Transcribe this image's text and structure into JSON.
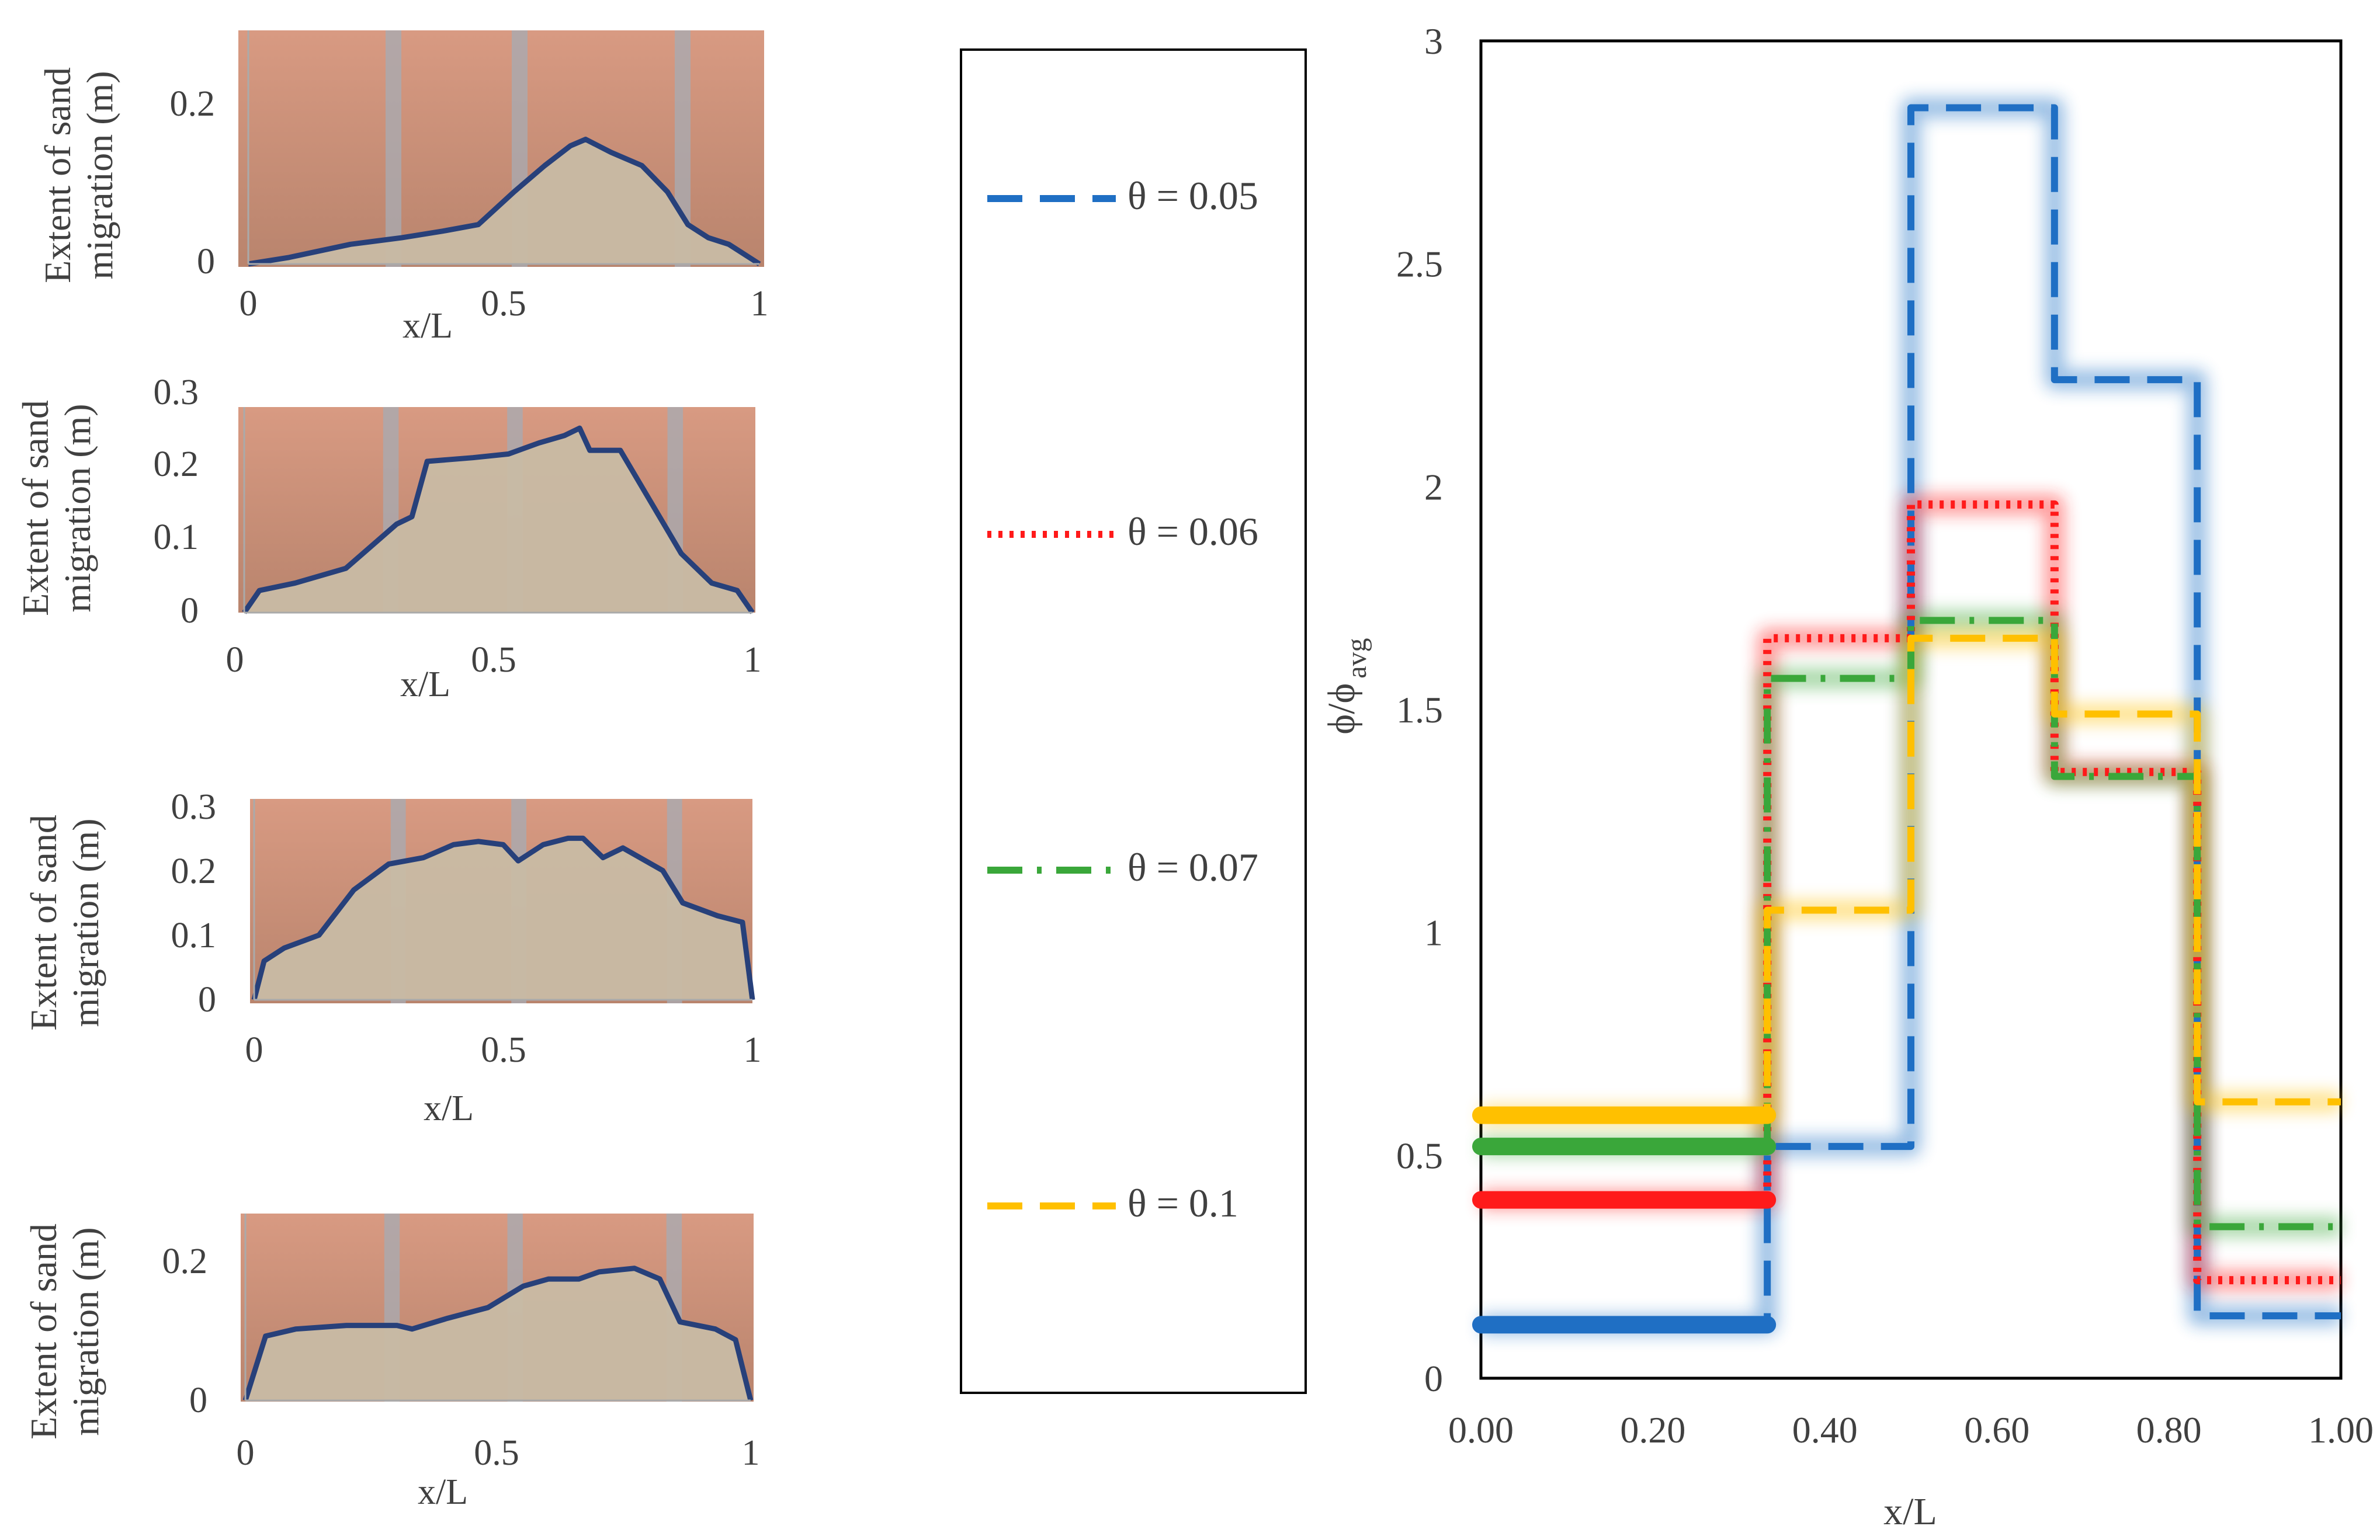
{
  "colors": {
    "blue": "#1f6fc4",
    "red": "#ff1a1a",
    "green": "#3aa73a",
    "yellow": "#ffc000",
    "sand_line": "#27407a",
    "photo_wall": "#c98f77",
    "sand": "#c8bba4",
    "post": "#a9aab0"
  },
  "legend": {
    "entries": [
      {
        "label": "θ = 0.05",
        "color_key": "blue",
        "style": "dashed"
      },
      {
        "label": "θ = 0.06",
        "color_key": "red",
        "style": "dotted"
      },
      {
        "label": "θ = 0.07",
        "color_key": "green",
        "style": "dashdot"
      },
      {
        "label": "θ = 0.1",
        "color_key": "yellow",
        "style": "dashed"
      }
    ]
  },
  "panels": [
    {
      "ylabel": [
        "Extent of sand",
        "migration (m)"
      ],
      "xlabel": "x/L",
      "yticks": [
        "0.2",
        "0"
      ],
      "ytick_values": [
        0.2,
        0
      ],
      "xticks": [
        "0",
        "0.5",
        "1"
      ],
      "ymax": 0.3
    },
    {
      "ylabel": [
        "Extent of sand",
        "migration (m)"
      ],
      "xlabel": "x/L",
      "yticks": [
        "0.3",
        "0.2",
        "0.1",
        "0"
      ],
      "ytick_values": [
        0.3,
        0.2,
        0.1,
        0
      ],
      "xticks": [
        "0",
        "0.5",
        "1"
      ],
      "ymax": 0.3
    },
    {
      "ylabel": [
        "Extent of sand",
        "migration (m)"
      ],
      "xlabel": "x/L",
      "yticks": [
        "0.3",
        "0.2",
        "0.1",
        "0"
      ],
      "ytick_values": [
        0.3,
        0.2,
        0.1,
        0
      ],
      "xticks": [
        "0",
        "0.5",
        "1"
      ],
      "ymax": 0.3
    },
    {
      "ylabel": [
        "Extent of sand",
        "migration (m)"
      ],
      "xlabel": "x/L",
      "yticks": [
        "0.2",
        "0"
      ],
      "ytick_values": [
        0.2,
        0
      ],
      "xticks": [
        "0",
        "0.5",
        "1"
      ],
      "ymax": 0.26
    }
  ],
  "chart_data": [
    {
      "type": "line",
      "chart": "main-step-chart",
      "xlabel": "x/L",
      "ylabel": "ϕ/ϕ",
      "ylabel_sub": "avg",
      "xlim": [
        0,
        1
      ],
      "ylim": [
        0,
        3
      ],
      "xticks": [
        "0.00",
        "0.20",
        "0.40",
        "0.60",
        "0.80",
        "1.00"
      ],
      "xtick_values": [
        0,
        0.2,
        0.4,
        0.6,
        0.8,
        1.0
      ],
      "yticks": [
        "0",
        "0.5",
        "1",
        "1.5",
        "2",
        "2.5",
        "3"
      ],
      "ytick_values": [
        0,
        0.5,
        1,
        1.5,
        2,
        2.5,
        3
      ],
      "bin_edges": [
        0,
        0.333,
        0.5,
        0.667,
        0.833,
        1.0
      ],
      "series": [
        {
          "name": "θ = 0.05",
          "values": [
            0.12,
            0.52,
            2.85,
            2.24,
            0.14
          ]
        },
        {
          "name": "θ = 0.06",
          "values": [
            0.4,
            1.66,
            1.96,
            1.36,
            0.22
          ]
        },
        {
          "name": "θ = 0.07",
          "values": [
            0.52,
            1.57,
            1.7,
            1.35,
            0.34
          ]
        },
        {
          "name": "θ = 0.1",
          "values": [
            0.59,
            1.05,
            1.66,
            1.49,
            0.62
          ]
        }
      ]
    },
    {
      "type": "line",
      "chart": "sand-profile-1",
      "x": [
        0,
        0.08,
        0.2,
        0.3,
        0.38,
        0.45,
        0.52,
        0.58,
        0.63,
        0.66,
        0.71,
        0.77,
        0.82,
        0.86,
        0.9,
        0.94,
        1.0
      ],
      "y": [
        0.0,
        0.01,
        0.03,
        0.04,
        0.05,
        0.06,
        0.11,
        0.15,
        0.18,
        0.19,
        0.17,
        0.15,
        0.11,
        0.06,
        0.04,
        0.03,
        0.0
      ]
    },
    {
      "type": "line",
      "chart": "sand-profile-2",
      "x": [
        0,
        0.03,
        0.1,
        0.2,
        0.3,
        0.33,
        0.36,
        0.45,
        0.52,
        0.58,
        0.63,
        0.66,
        0.68,
        0.74,
        0.8,
        0.86,
        0.92,
        0.97,
        1.0
      ],
      "y": [
        0.0,
        0.03,
        0.04,
        0.06,
        0.12,
        0.13,
        0.205,
        0.21,
        0.215,
        0.23,
        0.24,
        0.25,
        0.22,
        0.22,
        0.15,
        0.08,
        0.04,
        0.03,
        0.0
      ]
    },
    {
      "type": "line",
      "chart": "sand-profile-3",
      "x": [
        0,
        0.02,
        0.06,
        0.13,
        0.2,
        0.27,
        0.34,
        0.4,
        0.45,
        0.5,
        0.53,
        0.58,
        0.63,
        0.66,
        0.7,
        0.74,
        0.82,
        0.86,
        0.93,
        0.98,
        1.0
      ],
      "y": [
        0.0,
        0.06,
        0.08,
        0.1,
        0.17,
        0.21,
        0.22,
        0.24,
        0.245,
        0.24,
        0.215,
        0.24,
        0.25,
        0.25,
        0.22,
        0.235,
        0.2,
        0.15,
        0.13,
        0.12,
        0.0
      ]
    },
    {
      "type": "line",
      "chart": "sand-profile-4",
      "x": [
        0,
        0.04,
        0.1,
        0.2,
        0.3,
        0.33,
        0.4,
        0.48,
        0.55,
        0.6,
        0.66,
        0.7,
        0.77,
        0.82,
        0.86,
        0.93,
        0.97,
        1.0
      ],
      "y": [
        0.0,
        0.09,
        0.1,
        0.105,
        0.105,
        0.1,
        0.115,
        0.13,
        0.16,
        0.17,
        0.17,
        0.18,
        0.185,
        0.17,
        0.11,
        0.1,
        0.085,
        0.0
      ]
    }
  ]
}
